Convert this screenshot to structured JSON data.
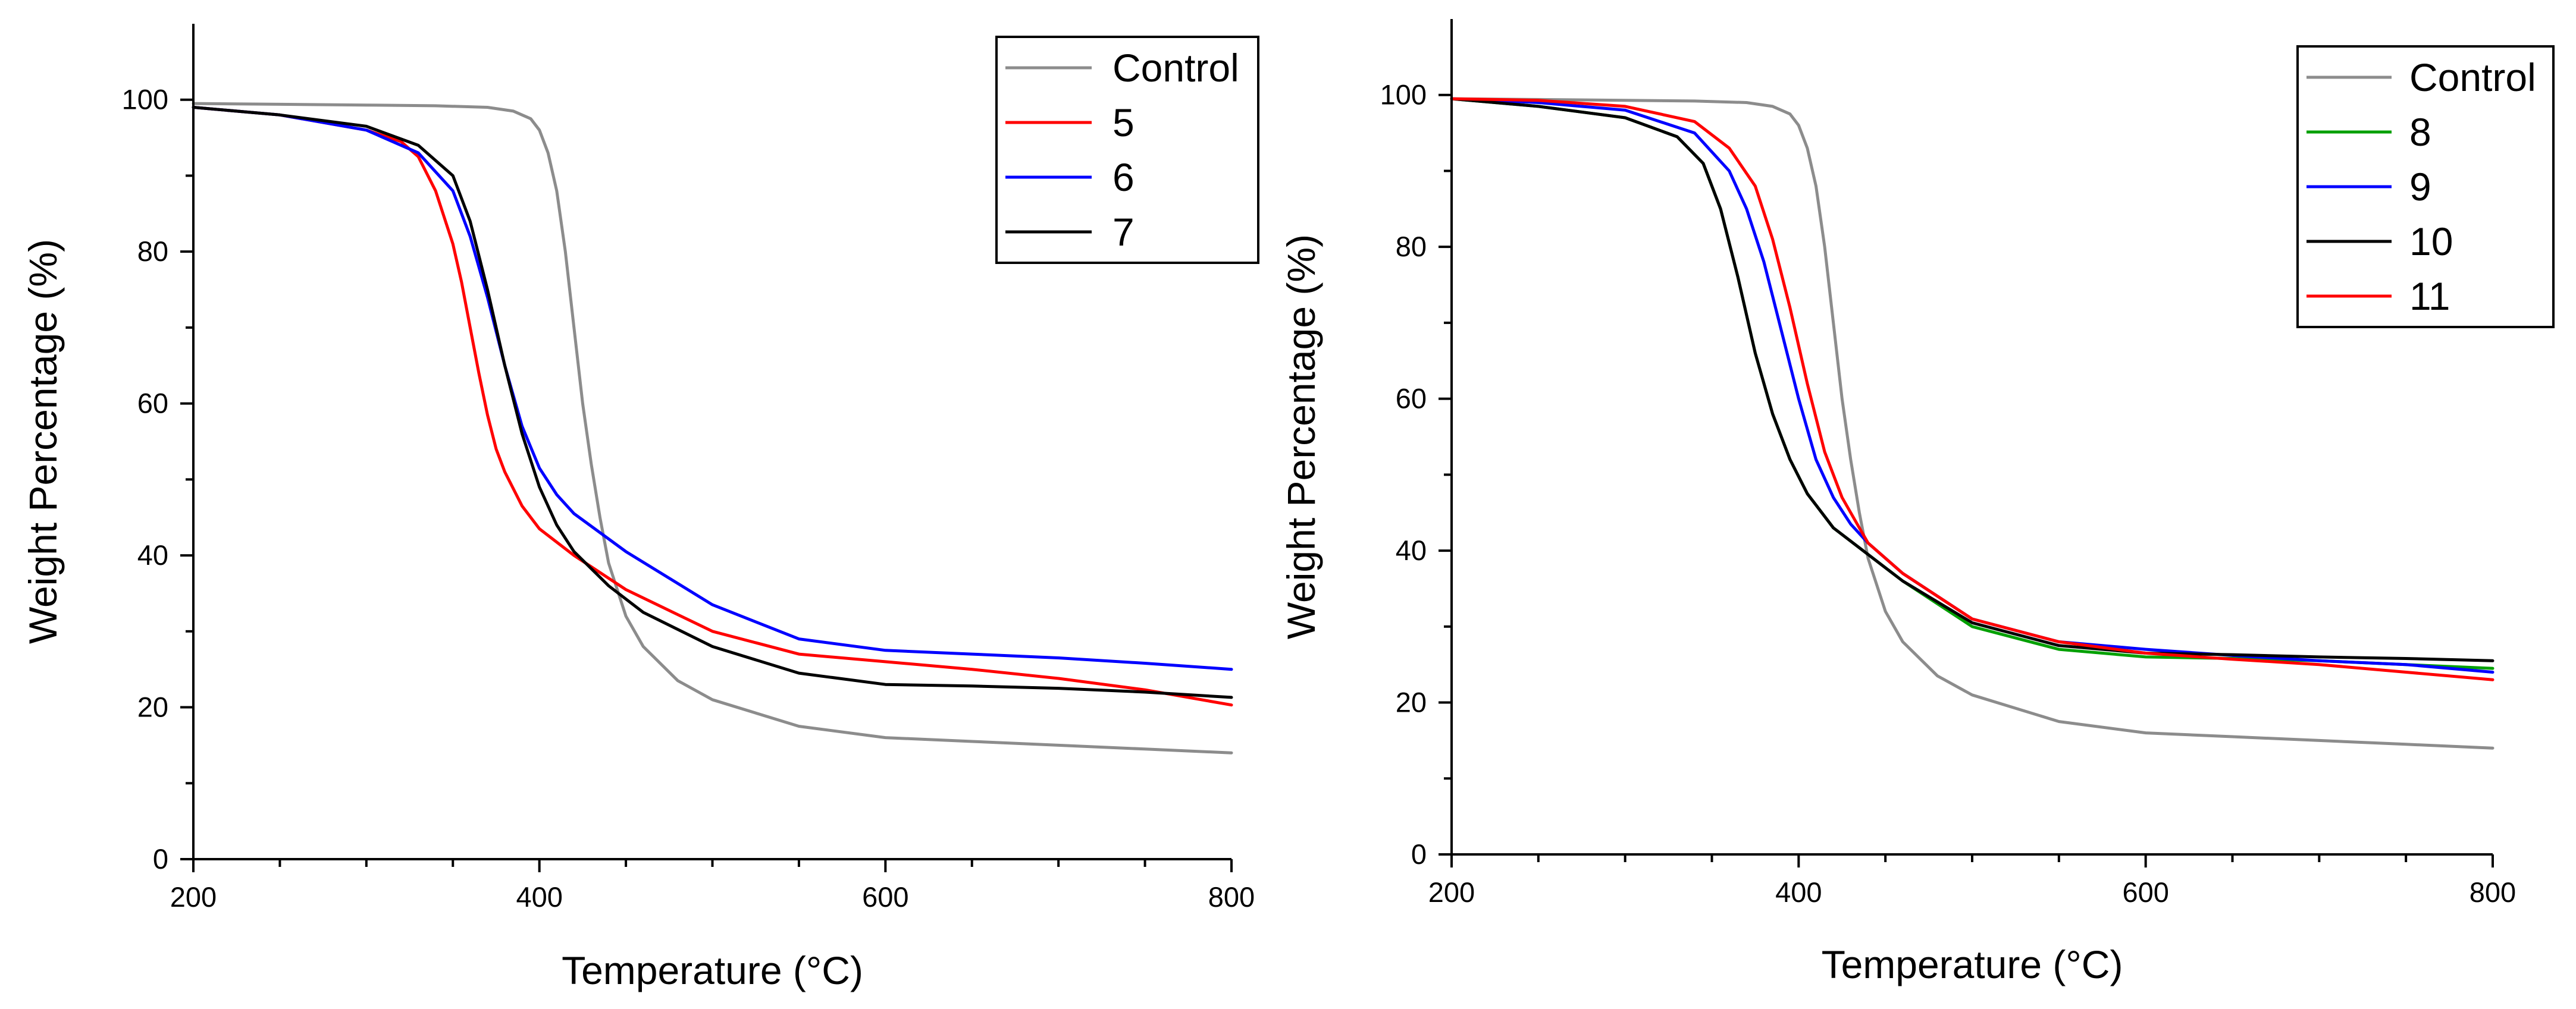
{
  "chart_data": [
    {
      "type": "line",
      "title": "",
      "xlabel": "Temperature (°C)",
      "ylabel": "Weight Percentage (%)",
      "xlim": [
        200,
        800
      ],
      "ylim": [
        0,
        110
      ],
      "xticks": [
        200,
        400,
        600,
        800
      ],
      "yticks": [
        0,
        20,
        40,
        60,
        80,
        100
      ],
      "grid": false,
      "legend_position": "top-right",
      "series": [
        {
          "name": "Control",
          "color": "#8c8c8c",
          "x": [
            200,
            250,
            300,
            340,
            370,
            385,
            395,
            400,
            405,
            410,
            415,
            420,
            425,
            430,
            435,
            440,
            450,
            460,
            480,
            500,
            550,
            600,
            650,
            700,
            750,
            800
          ],
          "y": [
            99.5,
            99.4,
            99.3,
            99.2,
            99,
            98.5,
            97.5,
            96,
            93,
            88,
            80,
            70,
            60,
            52,
            45,
            39,
            32,
            28,
            23.5,
            21,
            17.5,
            16,
            15.5,
            15,
            14.5,
            14
          ]
        },
        {
          "name": "5",
          "color": "#ff0000",
          "x": [
            200,
            250,
            300,
            320,
            330,
            340,
            350,
            355,
            360,
            365,
            370,
            375,
            380,
            390,
            400,
            420,
            450,
            500,
            550,
            600,
            650,
            700,
            750,
            800
          ],
          "y": [
            99,
            98,
            96,
            94.5,
            92.5,
            88,
            81,
            76,
            70,
            64,
            58.5,
            54,
            51,
            46.5,
            43.5,
            40,
            35.5,
            30,
            27,
            26,
            25,
            23.8,
            22.3,
            20.3
          ]
        },
        {
          "name": "6",
          "color": "#0000ff",
          "x": [
            200,
            250,
            300,
            330,
            350,
            360,
            370,
            380,
            390,
            400,
            410,
            420,
            450,
            500,
            550,
            600,
            650,
            700,
            750,
            800
          ],
          "y": [
            99,
            98,
            96,
            93,
            88,
            82,
            74,
            65,
            57,
            51.5,
            48,
            45.5,
            40.5,
            33.5,
            29,
            27.5,
            27,
            26.5,
            25.8,
            25
          ]
        },
        {
          "name": "7",
          "color": "#000000",
          "x": [
            200,
            250,
            300,
            330,
            350,
            360,
            370,
            380,
            390,
            400,
            410,
            420,
            440,
            460,
            500,
            550,
            600,
            650,
            700,
            750,
            800
          ],
          "y": [
            99,
            98,
            96.5,
            94,
            90,
            84,
            75,
            65,
            56,
            49,
            44,
            40.5,
            36,
            32.5,
            28,
            24.5,
            23,
            22.8,
            22.5,
            22,
            21.3
          ]
        }
      ]
    },
    {
      "type": "line",
      "title": "",
      "xlabel": "Temperature (°C)",
      "ylabel": "Weight Percentage (%)",
      "xlim": [
        200,
        800
      ],
      "ylim": [
        0,
        110
      ],
      "xticks": [
        200,
        400,
        600,
        800
      ],
      "yticks": [
        0,
        20,
        40,
        60,
        80,
        100
      ],
      "grid": false,
      "legend_position": "top-right",
      "series": [
        {
          "name": "Control",
          "color": "#8c8c8c",
          "x": [
            200,
            250,
            300,
            340,
            370,
            385,
            395,
            400,
            405,
            410,
            415,
            420,
            425,
            430,
            435,
            440,
            450,
            460,
            480,
            500,
            550,
            600,
            650,
            700,
            750,
            800
          ],
          "y": [
            99.5,
            99.4,
            99.3,
            99.2,
            99,
            98.5,
            97.5,
            96,
            93,
            88,
            80,
            70,
            60,
            52,
            45,
            39,
            32,
            28,
            23.5,
            21,
            17.5,
            16,
            15.5,
            15,
            14.5,
            14
          ]
        },
        {
          "name": "8",
          "color": "#00a000",
          "x": [
            200,
            250,
            300,
            330,
            345,
            355,
            365,
            375,
            385,
            395,
            405,
            420,
            440,
            460,
            500,
            550,
            600,
            650,
            700,
            750,
            800
          ],
          "y": [
            99.5,
            98.5,
            97,
            94.5,
            91,
            85,
            76,
            66,
            58,
            52,
            47.5,
            43,
            39.5,
            36,
            30,
            27,
            26,
            25.8,
            25.5,
            25,
            24.5
          ]
        },
        {
          "name": "9",
          "color": "#0000ff",
          "x": [
            200,
            250,
            300,
            340,
            360,
            370,
            380,
            390,
            400,
            410,
            420,
            430,
            440,
            460,
            500,
            550,
            600,
            650,
            700,
            750,
            800
          ],
          "y": [
            99.5,
            99,
            98,
            95,
            90,
            85,
            78,
            69,
            60,
            52,
            47,
            43.5,
            41,
            37,
            31,
            28,
            27,
            26.2,
            25.5,
            25,
            24
          ]
        },
        {
          "name": "10",
          "color": "#000000",
          "x": [
            200,
            250,
            300,
            330,
            345,
            355,
            365,
            375,
            385,
            395,
            405,
            420,
            440,
            460,
            500,
            550,
            600,
            650,
            700,
            750,
            800
          ],
          "y": [
            99.5,
            98.5,
            97,
            94.5,
            91,
            85,
            76,
            66,
            58,
            52,
            47.5,
            43,
            39.5,
            36,
            30.5,
            27.5,
            26.5,
            26.3,
            26,
            25.8,
            25.5
          ]
        },
        {
          "name": "11",
          "color": "#ff0000",
          "x": [
            200,
            250,
            300,
            340,
            360,
            375,
            385,
            395,
            405,
            415,
            425,
            435,
            440,
            460,
            500,
            550,
            600,
            650,
            700,
            750,
            800
          ],
          "y": [
            99.5,
            99.3,
            98.5,
            96.5,
            93,
            88,
            81,
            72,
            62,
            53,
            47,
            43,
            41,
            37,
            31,
            28,
            26.5,
            25.7,
            25,
            24,
            23
          ]
        }
      ]
    }
  ]
}
